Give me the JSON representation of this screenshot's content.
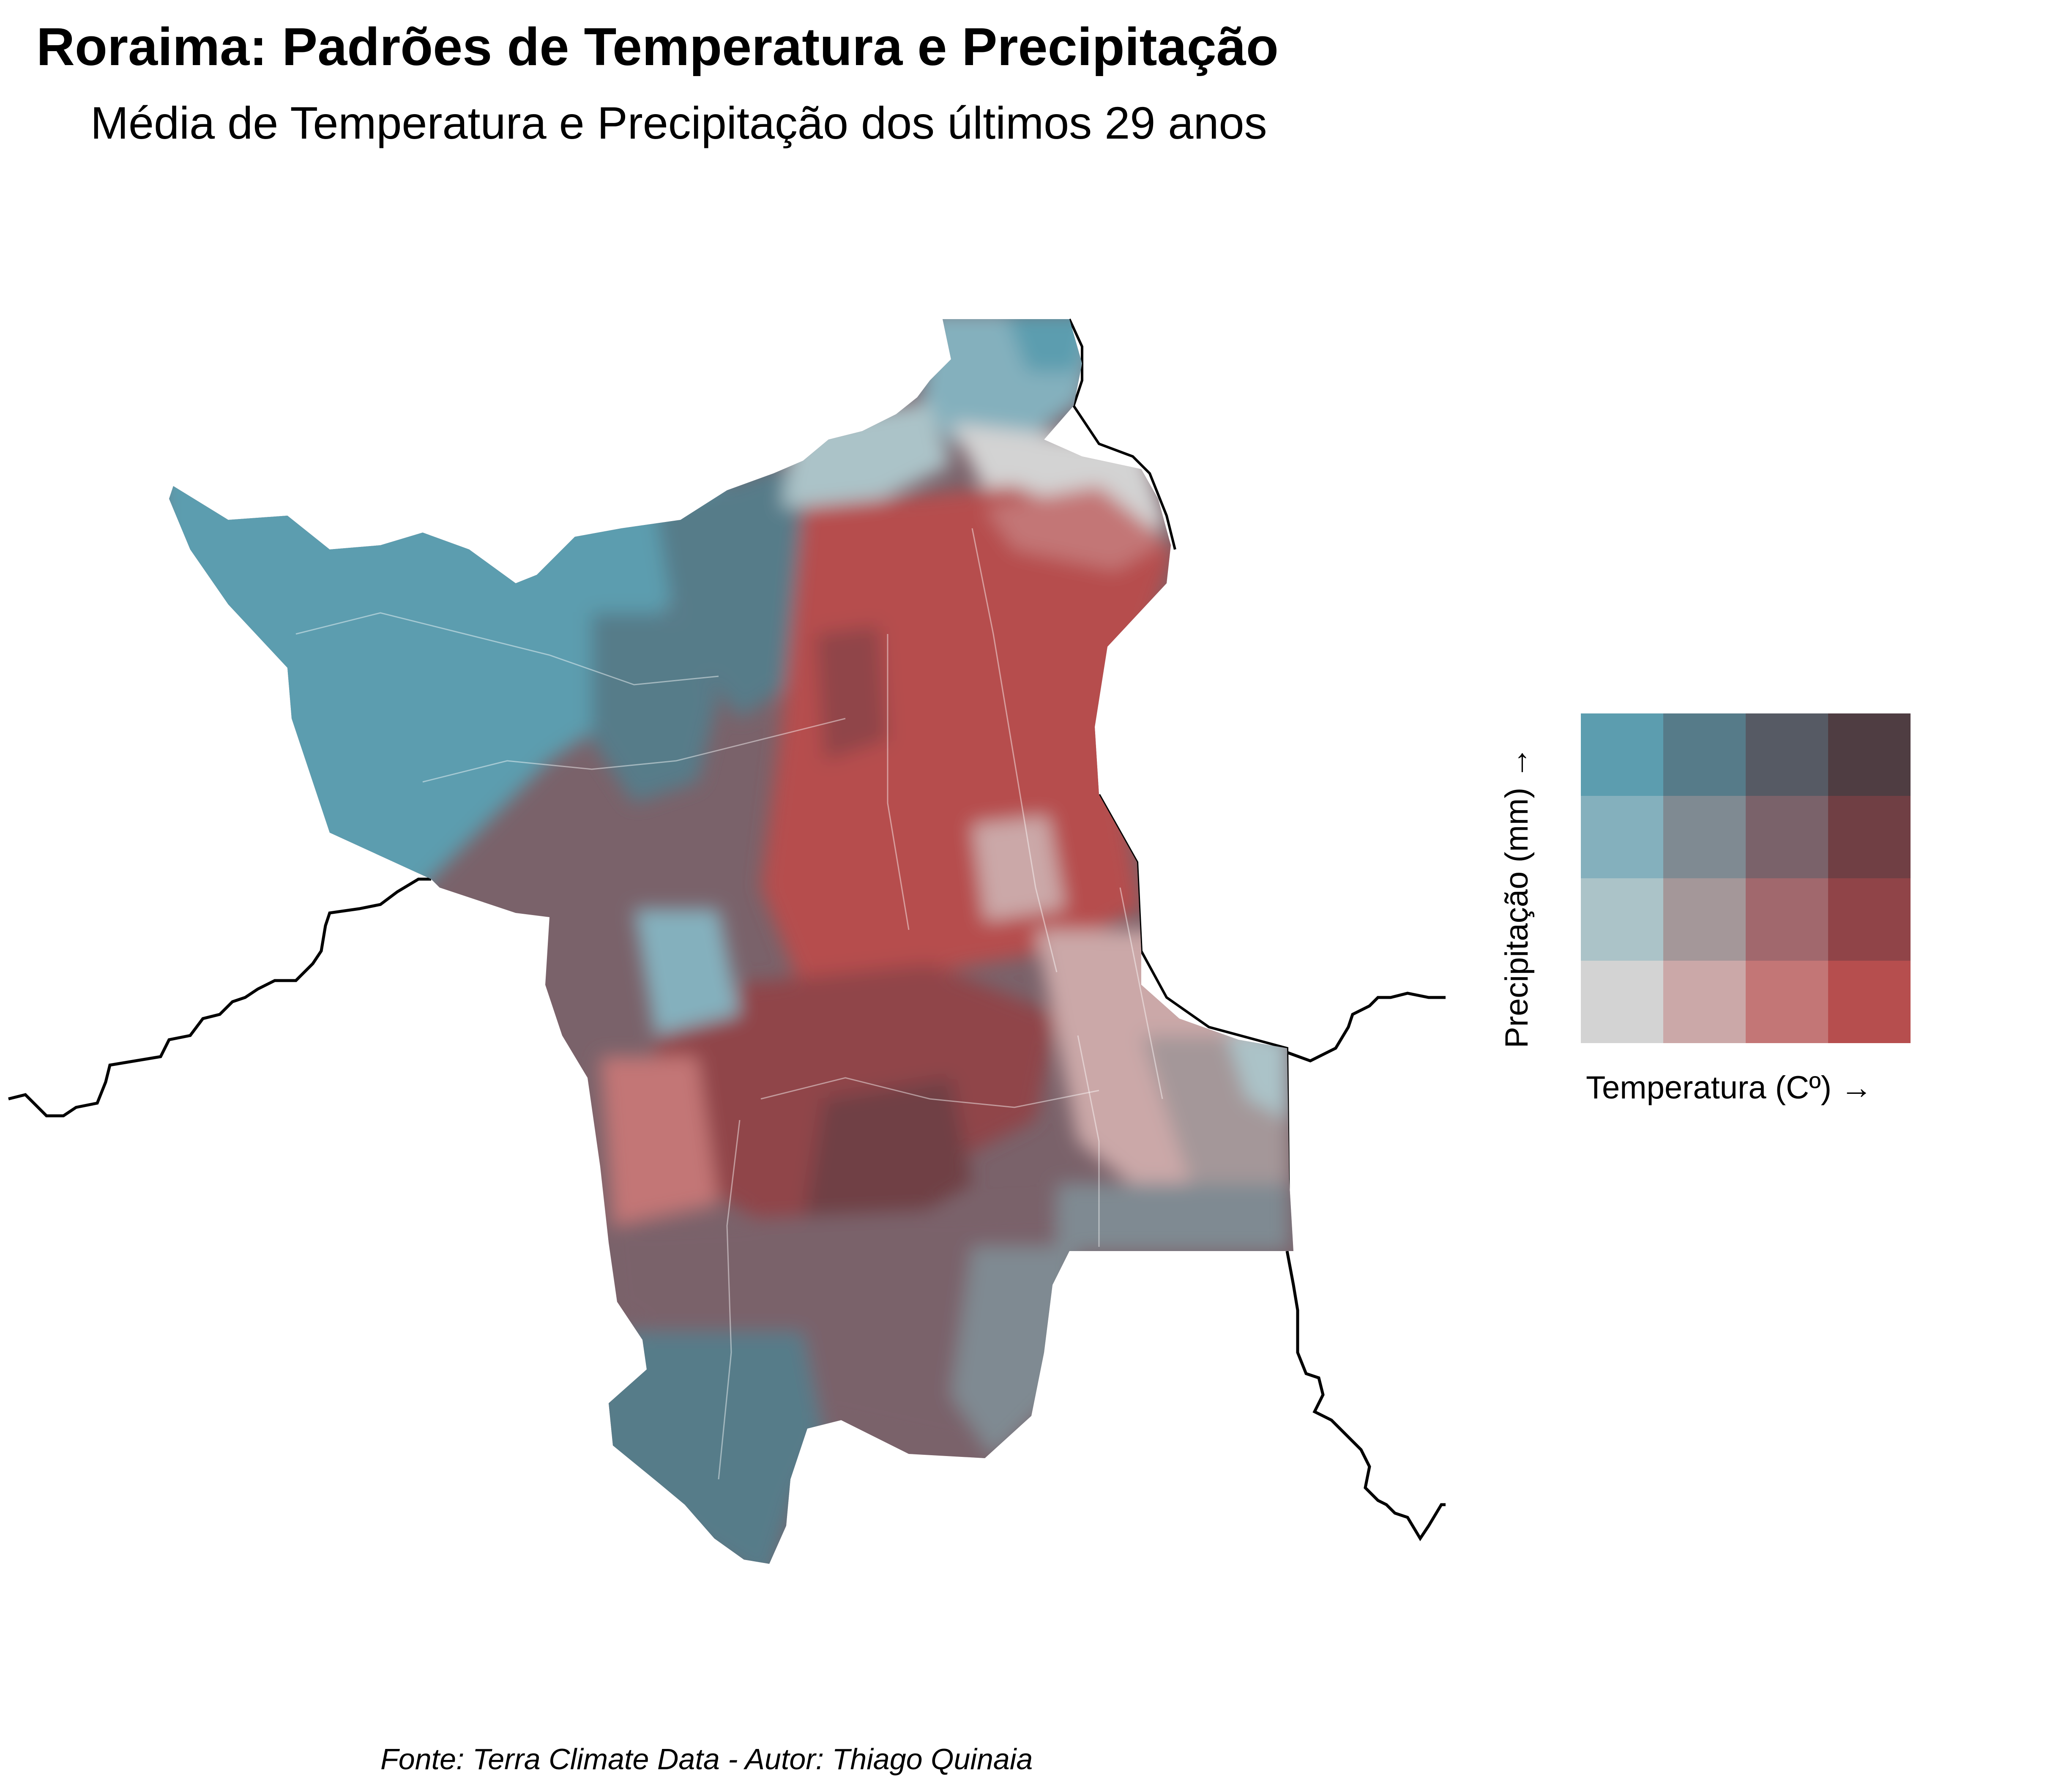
{
  "title": "Roraima: Padrões de Temperatura e Precipitação",
  "subtitle": "Média de Temperatura e Precipitação dos últimos 29 anos",
  "caption": "Fonte: Terra Climate Data - Autor: Thiago Quinaia",
  "legend": {
    "x_label": "Temperatura (Cº) →",
    "y_label": "Precipitação (mm) →",
    "grid_colors": [
      [
        "#5c9daf",
        "#567b89",
        "#565a64",
        "#4f3d42"
      ],
      [
        "#84b0bd",
        "#7f8a92",
        "#7a626a",
        "#703f44"
      ],
      [
        "#abc3c8",
        "#a49799",
        "#a1686d",
        "#904448"
      ],
      [
        "#d3d3d3",
        "#cba8a8",
        "#c37676",
        "#b64e4e"
      ]
    ]
  },
  "map": {
    "region": "Roraima",
    "colors": {
      "cold_wet": "#5c9daf",
      "cool_wet": "#567b89",
      "hot_dry": "#b64e4e",
      "hot_mid": "#904448",
      "neutral": "#d3d3d3",
      "mixed": "#7a626a",
      "border": "#000000"
    }
  }
}
